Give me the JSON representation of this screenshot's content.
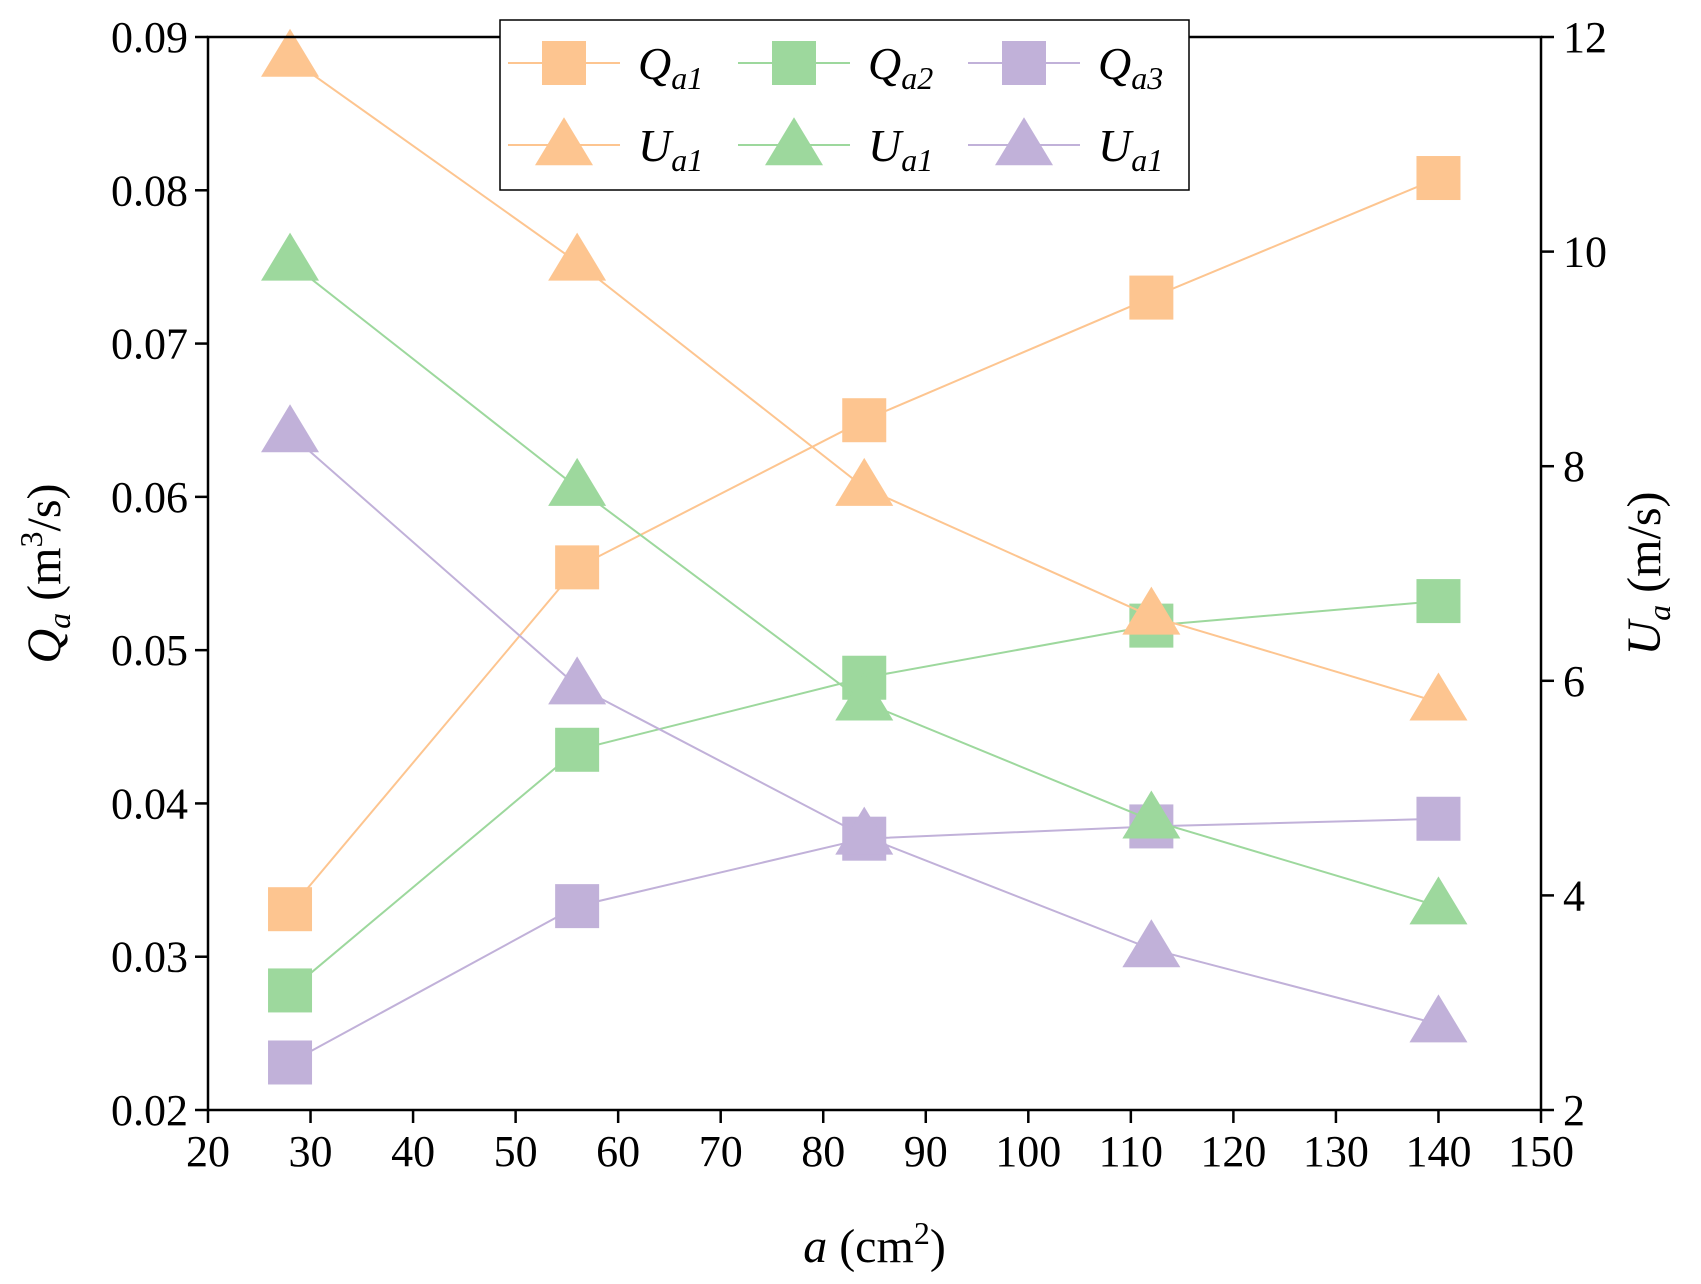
{
  "chart_data": {
    "type": "line",
    "title": "",
    "x": [
      28,
      56,
      84,
      112,
      140
    ],
    "xlim": [
      20,
      150
    ],
    "xticks": [
      20,
      30,
      40,
      50,
      60,
      70,
      80,
      90,
      100,
      110,
      120,
      130,
      140,
      150
    ],
    "ylim_left": [
      0.02,
      0.09
    ],
    "yticks_left": [
      0.02,
      0.03,
      0.04,
      0.05,
      0.06,
      0.07,
      0.08,
      0.09
    ],
    "ylim_right": [
      2,
      12
    ],
    "yticks_right": [
      2,
      4,
      6,
      8,
      10,
      12
    ],
    "xlabel": {
      "var": "a",
      "rest": "(cm",
      "sup": "2",
      "close": ")"
    },
    "ylabel_left": {
      "var": "Q",
      "sub": "a",
      "rest": "(m",
      "sup": "3",
      "close": "/s)"
    },
    "ylabel_right": {
      "var": "U",
      "sub": "a",
      "rest": "(m/s)"
    },
    "grid": false,
    "legend_position": "top-center",
    "series": [
      {
        "name": "Qa1",
        "label_var": "Q",
        "label_sub": "a1",
        "axis": "left",
        "marker": "square",
        "color": "#FDC590",
        "values": [
          0.0331,
          0.0554,
          0.065,
          0.073,
          0.0808
        ]
      },
      {
        "name": "Qa2",
        "label_var": "Q",
        "label_sub": "a2",
        "axis": "left",
        "marker": "square",
        "color": "#9DD89D",
        "values": [
          0.0278,
          0.0435,
          0.0482,
          0.0516,
          0.0532
        ]
      },
      {
        "name": "Qa3",
        "label_var": "Q",
        "label_sub": "a3",
        "axis": "left",
        "marker": "square",
        "color": "#C1B1D9",
        "values": [
          0.0231,
          0.0333,
          0.0377,
          0.0385,
          0.039
        ]
      },
      {
        "name": "Ua1",
        "label_var": "U",
        "label_sub": "a1",
        "axis": "right",
        "marker": "triangle",
        "color": "#FDC590",
        "values": [
          11.8,
          9.9,
          7.8,
          6.6,
          5.8
        ]
      },
      {
        "name": "Ua1",
        "label_var": "U",
        "label_sub": "a1",
        "axis": "right",
        "marker": "triangle",
        "color": "#9DD89D",
        "values": [
          9.9,
          7.8,
          5.8,
          4.7,
          3.9
        ]
      },
      {
        "name": "Ua1",
        "label_var": "U",
        "label_sub": "a1",
        "axis": "right",
        "marker": "triangle",
        "color": "#C1B1D9",
        "values": [
          8.3,
          5.95,
          4.55,
          3.5,
          2.8
        ]
      }
    ]
  }
}
